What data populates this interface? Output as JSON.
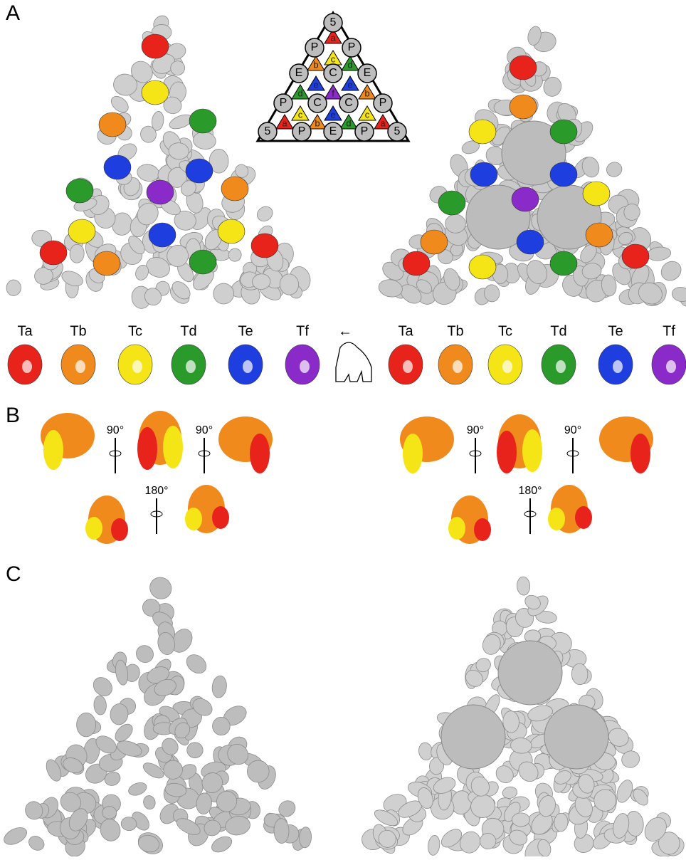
{
  "panel_labels": [
    "A",
    "B",
    "C"
  ],
  "diagram": {
    "nodes": [
      "5",
      "P",
      "P",
      "E",
      "C",
      "E",
      "P",
      "C",
      "C",
      "P",
      "5",
      "P",
      "E",
      "P",
      "5"
    ],
    "triangles": [
      {
        "label": "a",
        "color": "#e8231c"
      },
      {
        "label": "c",
        "color": "#f5e516"
      },
      {
        "label": "b",
        "color": "#f08a1c"
      },
      {
        "label": "d",
        "color": "#2a9a2a"
      },
      {
        "label": "e",
        "color": "#1e3ee0"
      },
      {
        "label": "e",
        "color": "#1e3ee0"
      },
      {
        "label": "d",
        "color": "#2a9a2a"
      },
      {
        "label": "f",
        "color": "#8a2ac8"
      },
      {
        "label": "b",
        "color": "#f08a1c"
      },
      {
        "label": "c",
        "color": "#f5e516"
      },
      {
        "label": "e",
        "color": "#1e3ee0"
      },
      {
        "label": "c",
        "color": "#f5e516"
      },
      {
        "label": "a",
        "color": "#e8231c"
      },
      {
        "label": "b",
        "color": "#f08a1c"
      },
      {
        "label": "d",
        "color": "#2a9a2a"
      },
      {
        "label": "a",
        "color": "#e8231c"
      }
    ]
  },
  "subunits": {
    "left": [
      "Ta",
      "Tb",
      "Tc",
      "Td",
      "Te",
      "Tf"
    ],
    "right": [
      "Ta",
      "Tb",
      "Tc",
      "Td",
      "Te",
      "Tf"
    ],
    "colors": [
      "#e8231c",
      "#f08a1c",
      "#f5e516",
      "#2a9a2a",
      "#1e3ee0",
      "#8a2ac8"
    ],
    "arrow": "←"
  },
  "rotations": {
    "left": [
      "90°",
      "90°",
      "180°"
    ],
    "right": [
      "90°",
      "90°",
      "180°"
    ]
  }
}
